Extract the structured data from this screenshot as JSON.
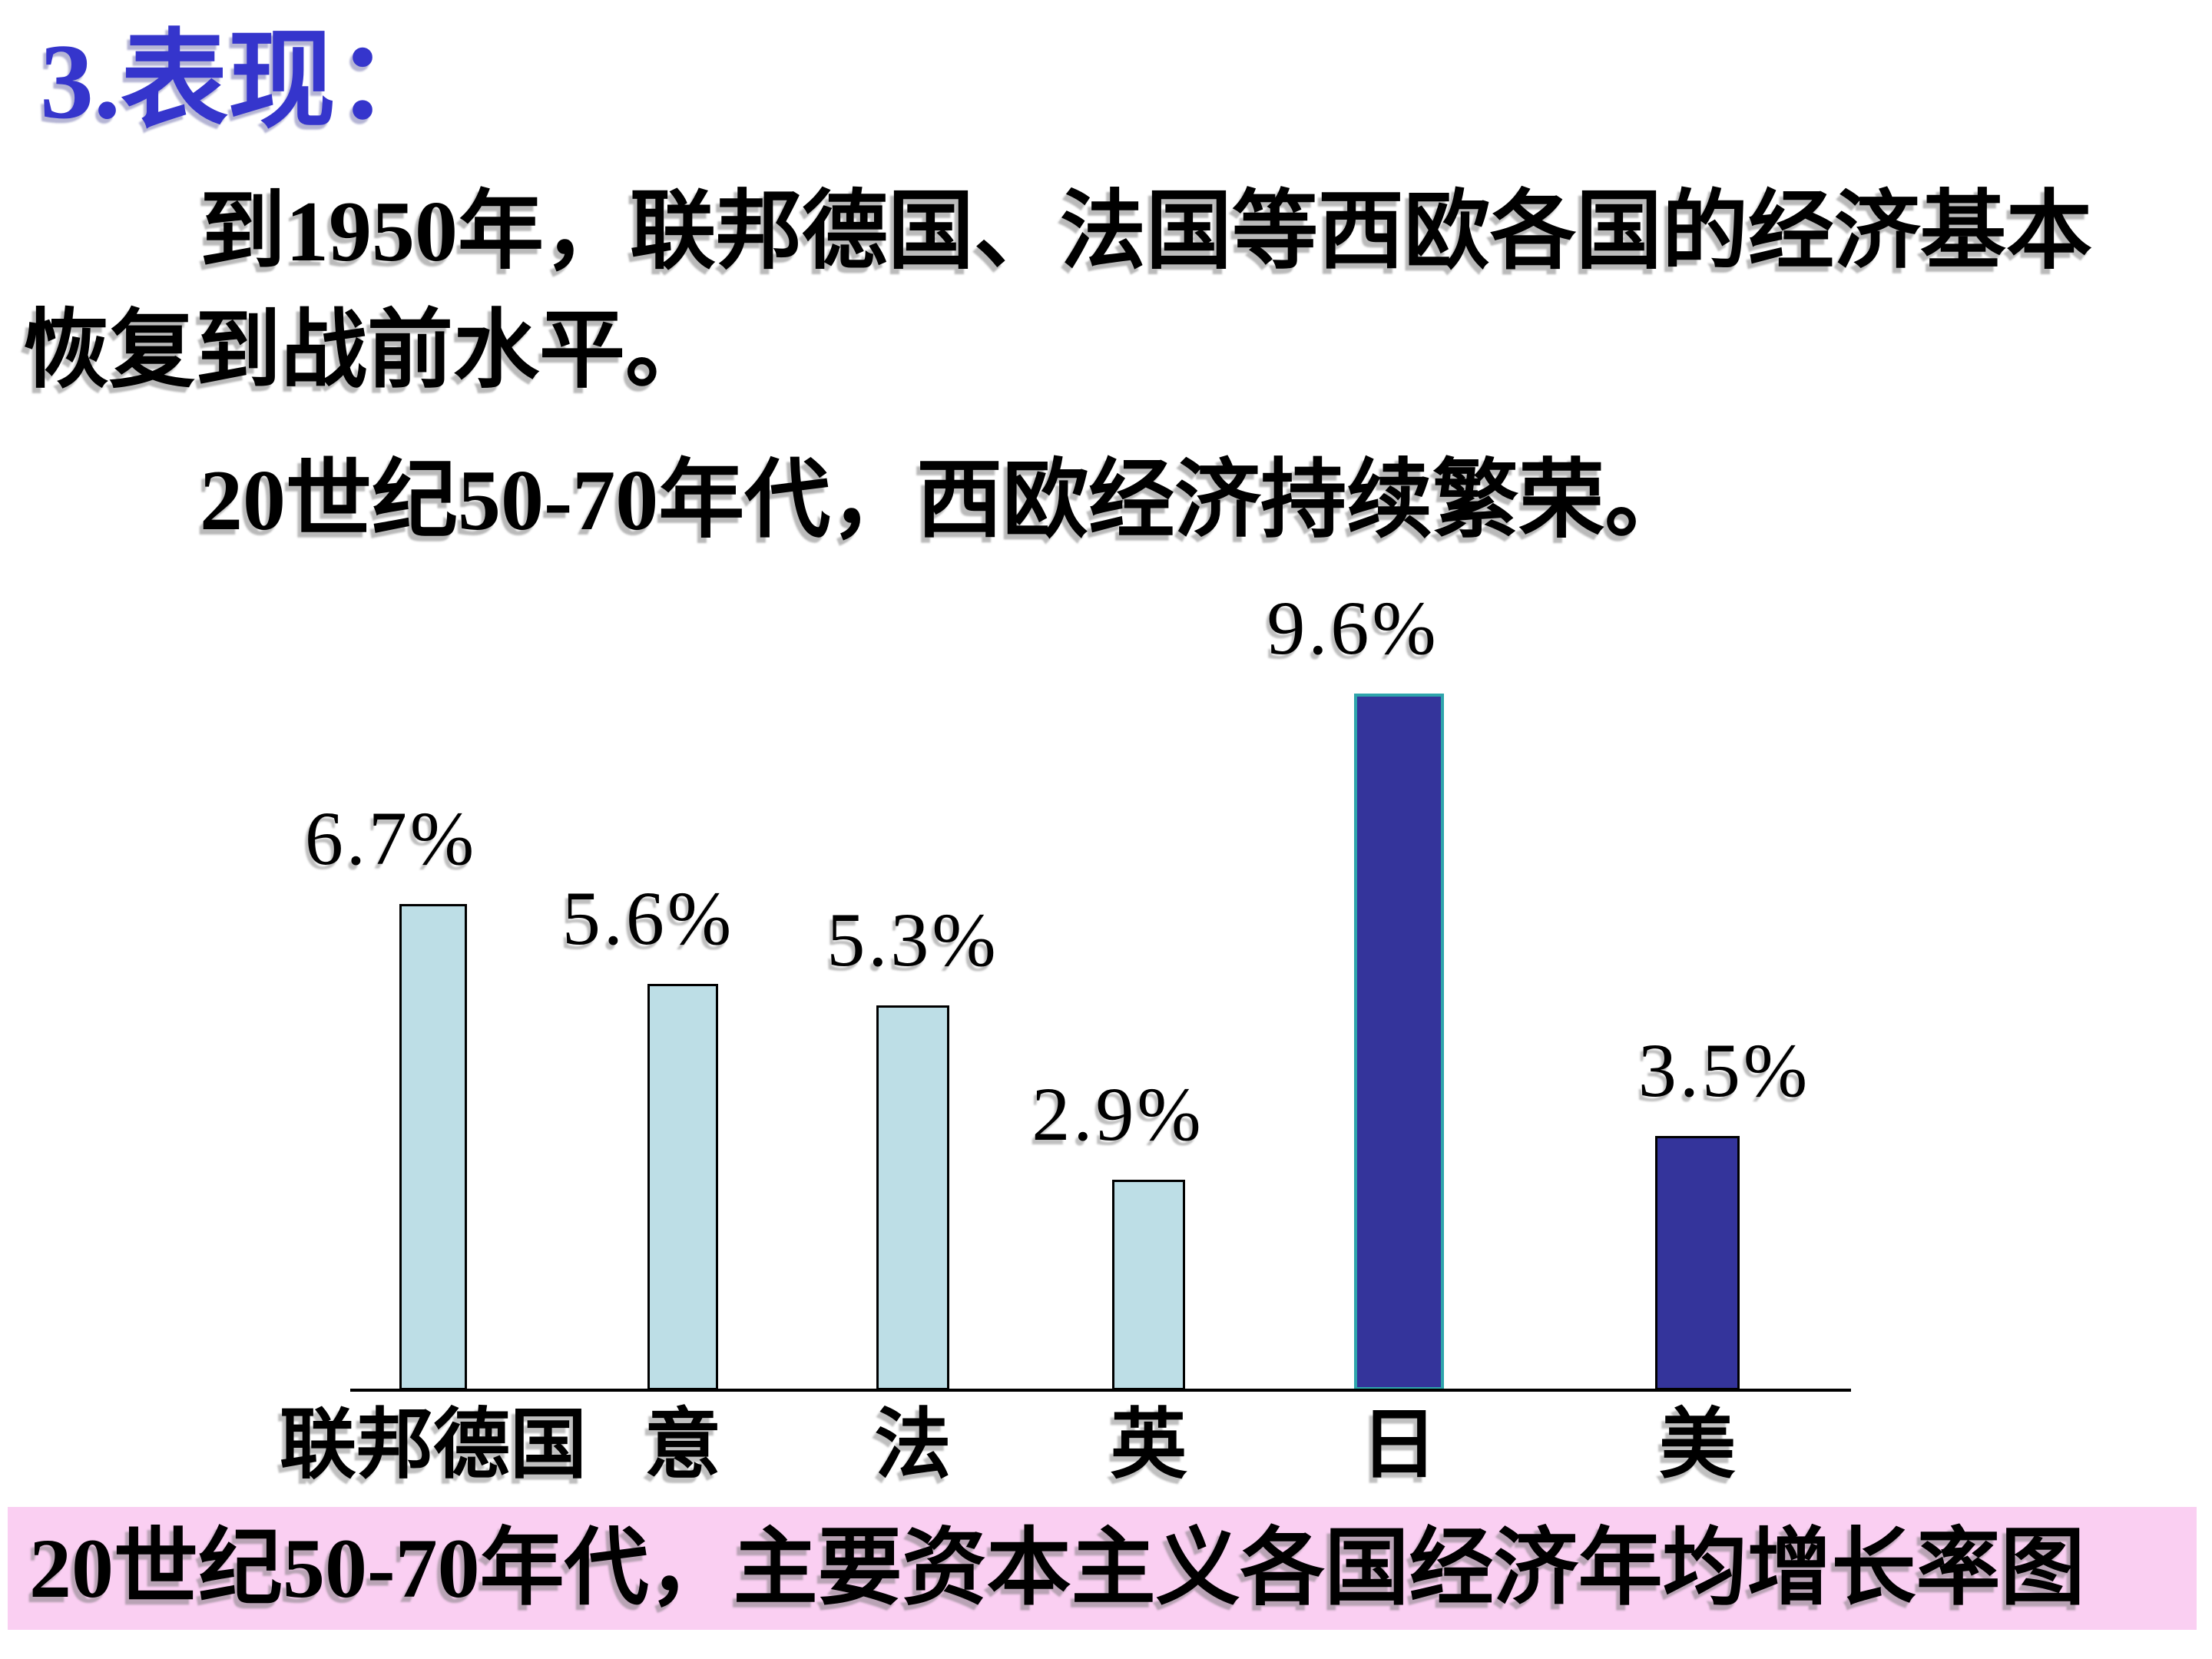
{
  "slide": {
    "title": "3.表现：",
    "paragraph1": "到1950年，联邦德国、法国等西欧各国的经济基本恢复到战前水平。",
    "paragraph2": "20世纪50-70年代，西欧经济持续繁荣。",
    "caption": "20世纪50-70年代，主要资本主义各国经济年均增长率图"
  },
  "colors": {
    "title_blue": "#3535CC",
    "light_bar_fill": "#BDDEE6",
    "dark_bar_fill": "#34349B",
    "light_bar_border": "#000000",
    "japan_bar_border": "#2FA5AC",
    "caption_background": "#FACFF2",
    "axis": "#000000",
    "text": "#000000"
  },
  "chart_data": {
    "type": "bar",
    "title": "20世纪50-70年代，主要资本主义各国经济年均增长率图",
    "categories": [
      "联邦德国",
      "意",
      "法",
      "英",
      "日",
      "美"
    ],
    "values": [
      6.7,
      5.6,
      5.3,
      2.9,
      9.6,
      3.5
    ],
    "value_labels": [
      "6.7%",
      "5.6%",
      "5.3%",
      "2.9%",
      "9.6%",
      "3.5%"
    ],
    "bar_fills": [
      "#BDDEE6",
      "#BDDEE6",
      "#BDDEE6",
      "#BDDEE6",
      "#34349B",
      "#34349B"
    ],
    "bar_borders": [
      "#000000",
      "#000000",
      "#000000",
      "#000000",
      "#2FA5AC",
      "#000000"
    ],
    "xlabel": "",
    "ylabel": "",
    "ylim": [
      0,
      10
    ],
    "grid": false,
    "legend": false,
    "value_labels_position": "above-bars"
  }
}
